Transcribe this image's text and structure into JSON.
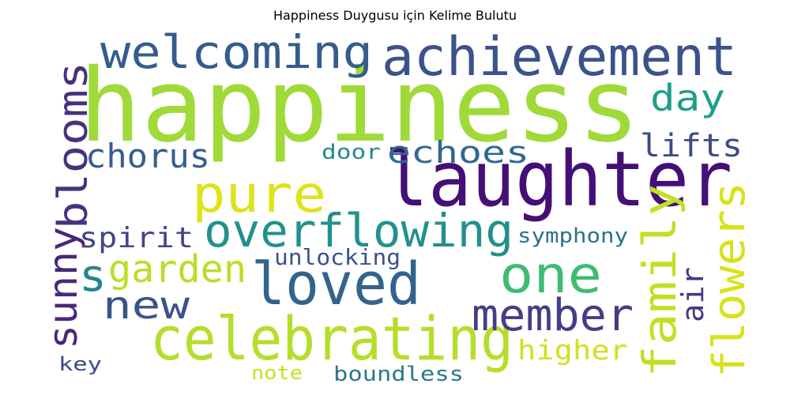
{
  "chart_data": {
    "type": "wordcloud",
    "title": "Happiness Duygusu için Kelime Bulutu",
    "background": "#ffffff",
    "colormap": "viridis",
    "words": [
      {
        "text": "happiness",
        "color": "#a0da39"
      },
      {
        "text": "laughter",
        "color": "#440f76"
      },
      {
        "text": "achievement",
        "color": "#3b528b"
      },
      {
        "text": "welcoming",
        "color": "#365c8d"
      },
      {
        "text": "celebrating",
        "color": "#b5de2b"
      },
      {
        "text": "loved",
        "color": "#33638d"
      },
      {
        "text": "overflowing",
        "color": "#21918c"
      },
      {
        "text": "pure",
        "color": "#dde318"
      },
      {
        "text": "one",
        "color": "#3dbc74"
      },
      {
        "text": "member",
        "color": "#433e85"
      },
      {
        "text": "family",
        "color": "#c2df23"
      },
      {
        "text": "flowers",
        "color": "#d8e219"
      },
      {
        "text": "sunny",
        "color": "#482878"
      },
      {
        "text": "blooms",
        "color": "#46327e"
      },
      {
        "text": "garden",
        "color": "#b8de29"
      },
      {
        "text": "new",
        "color": "#3b528b"
      },
      {
        "text": "s",
        "color": "#25858e"
      },
      {
        "text": "day",
        "color": "#1f9e89"
      },
      {
        "text": "lifts",
        "color": "#3e4989"
      },
      {
        "text": "chorus",
        "color": "#365d8d"
      },
      {
        "text": "echoes",
        "color": "#31688e"
      },
      {
        "text": "spirit",
        "color": "#404688"
      },
      {
        "text": "air",
        "color": "#443983"
      },
      {
        "text": "higher",
        "color": "#d0e11c"
      },
      {
        "text": "symphony",
        "color": "#2c728e"
      },
      {
        "text": "unlocking",
        "color": "#3b528b"
      },
      {
        "text": "door",
        "color": "#23898e"
      },
      {
        "text": "key",
        "color": "#3e4989"
      },
      {
        "text": "note",
        "color": "#c8e020"
      },
      {
        "text": "boundless",
        "color": "#2a788e"
      }
    ]
  }
}
